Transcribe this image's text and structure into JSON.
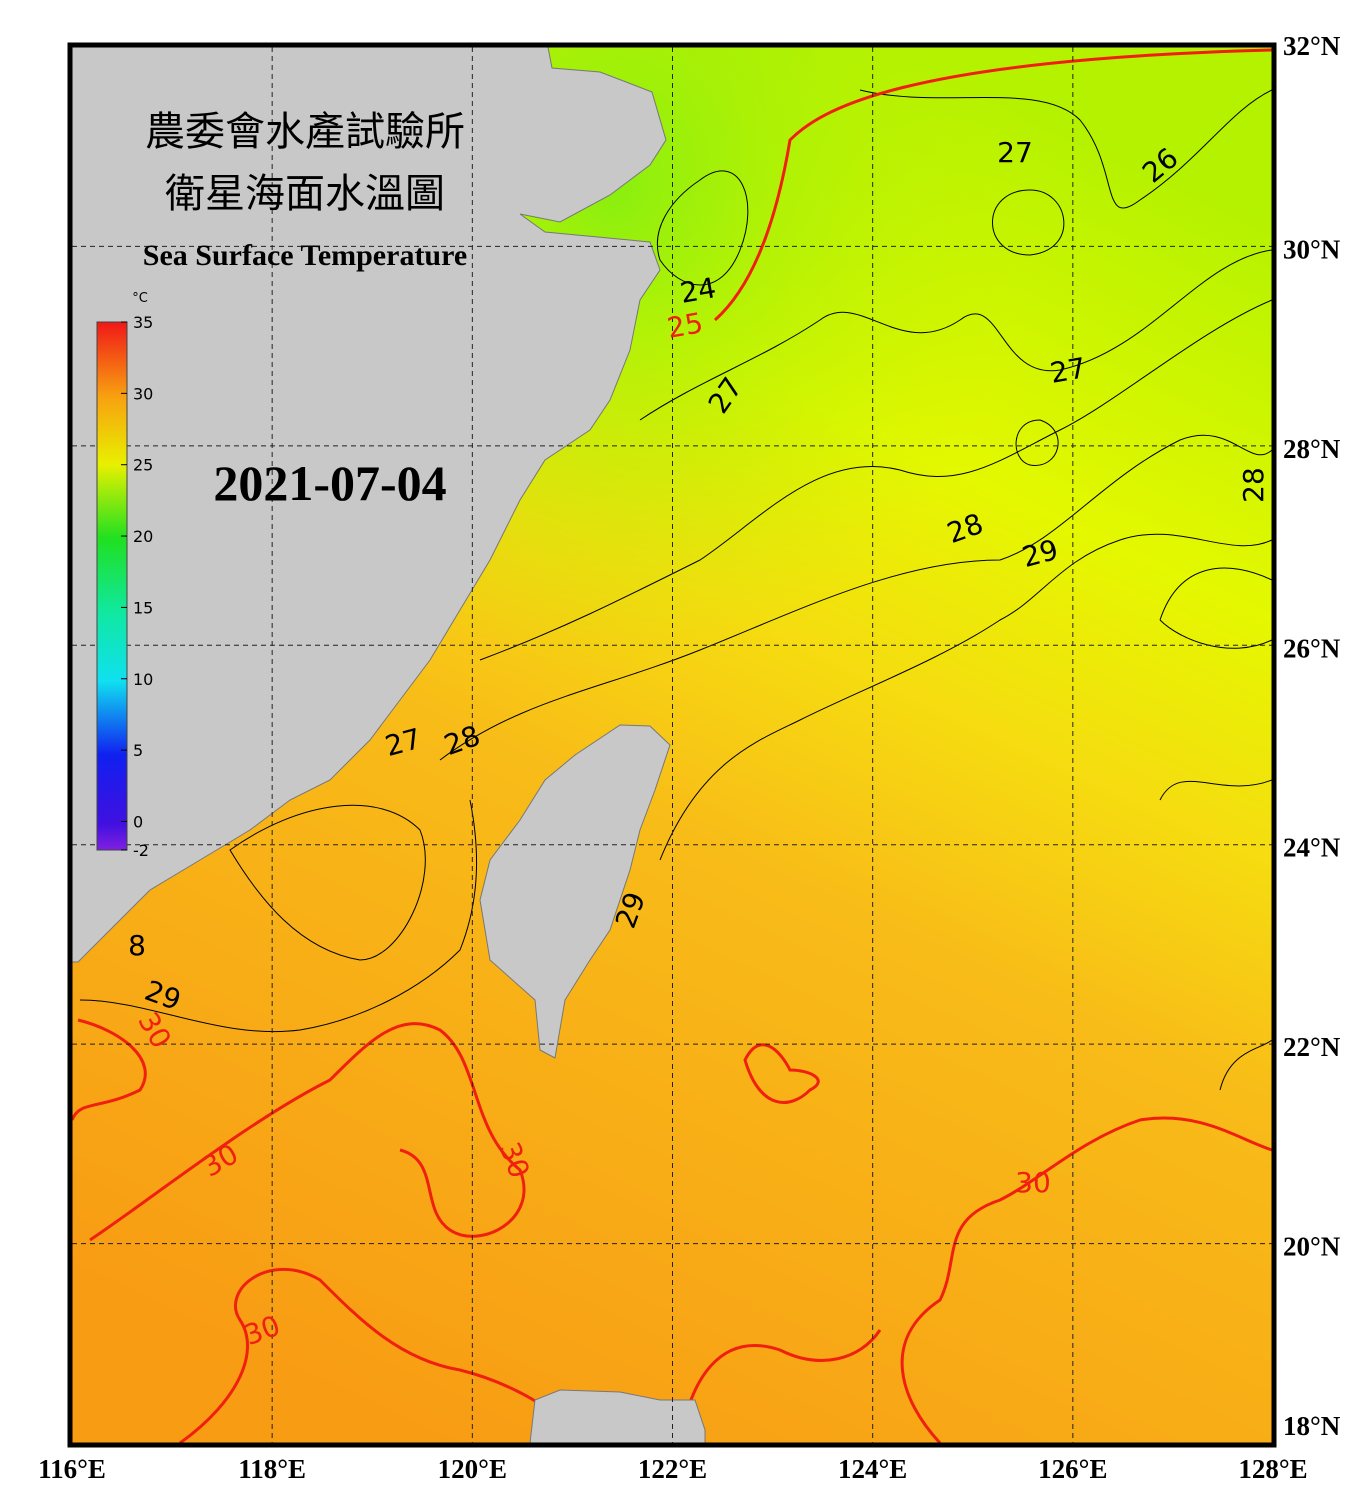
{
  "header": {
    "title_zh_1": "農委會水產試驗所",
    "title_zh_2": "衛星海面水溫圖",
    "title_en": "Sea Surface Temperature"
  },
  "date": "2021-07-04",
  "colorbar": {
    "unit": "°C",
    "range": [
      -2,
      35
    ],
    "ticks": [
      35,
      30,
      25,
      20,
      15,
      10,
      5,
      0,
      -2
    ]
  },
  "axes": {
    "lon_ticks": [
      {
        "value": 116,
        "label": "116°E"
      },
      {
        "value": 118,
        "label": "118°E"
      },
      {
        "value": 120,
        "label": "120°E"
      },
      {
        "value": 122,
        "label": "122°E"
      },
      {
        "value": 124,
        "label": "124°E"
      },
      {
        "value": 126,
        "label": "126°E"
      },
      {
        "value": 128,
        "label": "128°E"
      }
    ],
    "lat_ticks": [
      {
        "value": 32,
        "label": "32°N"
      },
      {
        "value": 30,
        "label": "30°N"
      },
      {
        "value": 28,
        "label": "28°N"
      },
      {
        "value": 26,
        "label": "26°N"
      },
      {
        "value": 24,
        "label": "24°N"
      },
      {
        "value": 22,
        "label": "22°N"
      },
      {
        "value": 20,
        "label": "20°N"
      },
      {
        "value": 18,
        "label": "18°N"
      }
    ]
  },
  "contour_labels": [
    "27",
    "26",
    "24",
    "25",
    "27",
    "27",
    "28",
    "29",
    "28",
    "27",
    "28",
    "29",
    "8",
    "29",
    "30",
    "30",
    "30",
    "30",
    "30"
  ]
}
